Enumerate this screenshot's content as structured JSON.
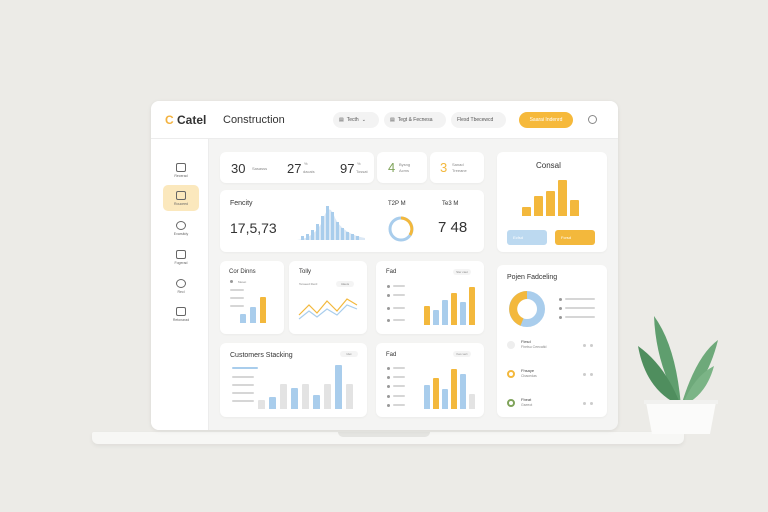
{
  "app": {
    "logo_text": "Catel",
    "logo_letter": "C",
    "title": "Construction"
  },
  "header": {
    "pills": [
      {
        "label": "Tecth"
      },
      {
        "label": "Tegt & Fecnesa"
      },
      {
        "label": "Flesd Tbecewcd"
      }
    ],
    "action_label": "Saarai Indenrd"
  },
  "sidebar": {
    "items": [
      {
        "label": "Recerad",
        "icon": "document-icon"
      },
      {
        "label": "Rouceed",
        "icon": "grid-icon"
      },
      {
        "label": "Evarsitdy",
        "icon": "search-icon"
      },
      {
        "label": "Fogerad",
        "icon": "calendar-icon"
      },
      {
        "label": "Recl",
        "icon": "globe-icon"
      },
      {
        "label": "Retonarad",
        "icon": "building-icon"
      }
    ]
  },
  "stats": [
    {
      "value": "30",
      "label": "Sasasss"
    },
    {
      "value": "27",
      "sup": "%",
      "label": "dacais"
    },
    {
      "value": "97",
      "sup": "%",
      "label": "Tossat"
    },
    {
      "value": "4",
      "label": "Bysng",
      "sub": "Acms"
    },
    {
      "value": "3",
      "label": "Sanad",
      "sub": "Treeane"
    }
  ],
  "fencity": {
    "title": "Fencity",
    "value": "17,5,73",
    "gauge_label": "T2P M",
    "right_label": "Te3 M",
    "right_value": "7 48"
  },
  "consal": {
    "title": "Consal",
    "bars": [
      0.25,
      0.55,
      0.7,
      1.0,
      0.45
    ],
    "btn_left": "Ecfsd",
    "btn_right": "Fcrsd"
  },
  "cards": {
    "cor": {
      "title": "Cor Dinns",
      "tag": "Meset",
      "bars": [
        0.28,
        0.5,
        0.8
      ]
    },
    "tolly": {
      "title": "Tolly",
      "legend": "Teraeed Itlerd",
      "tag": "Idaets"
    },
    "fad1": {
      "title": "Fad",
      "tag": "Sler caut",
      "bars": [
        0.45,
        0.35,
        0.6,
        0.75,
        0.55,
        0.9
      ]
    },
    "customers": {
      "title": "Customers Stacking",
      "tag": "Idet",
      "bars": [
        0.2,
        0.25,
        0.55,
        0.45,
        0.55,
        0.3,
        0.55,
        0.95,
        0.55
      ]
    },
    "fad2": {
      "title": "Fad",
      "tag": "Kes vert",
      "bars": [
        0.55,
        0.7,
        0.45,
        0.9,
        0.8,
        0.35
      ]
    }
  },
  "project": {
    "title": "Pojen Fadceling",
    "donut": [
      0.55,
      0.45
    ],
    "items": [
      {
        "name": "Flesd",
        "desc": "Fhetsu Ceecaltd"
      },
      {
        "name": "Fhsaye",
        "desc": "Cbacedas"
      },
      {
        "name": "Fbeat",
        "desc": "Gseeot"
      }
    ]
  },
  "colors": {
    "accent": "#f3b83c",
    "blue": "#a9cdec"
  }
}
